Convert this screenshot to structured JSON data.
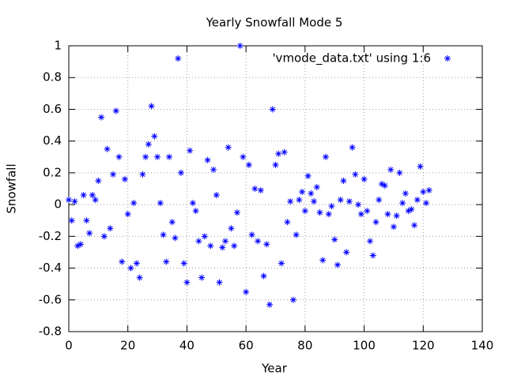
{
  "chart_data": {
    "type": "scatter",
    "title": "Yearly Snowfall Mode 5",
    "xlabel": "Year",
    "ylabel": "Snowfall",
    "legend": "top-right",
    "grid": true,
    "xlim": [
      0,
      140
    ],
    "xticks": [
      0,
      20,
      40,
      60,
      80,
      100,
      120,
      140
    ],
    "ylim": [
      -0.8,
      1
    ],
    "yticks": [
      -0.8,
      -0.6,
      -0.4,
      -0.2,
      0,
      0.2,
      0.4,
      0.6,
      0.8,
      1
    ],
    "series": [
      {
        "name": "'vmode_data.txt' using 1:6",
        "color": "#0000ff",
        "x": [
          0,
          1,
          2,
          3,
          4,
          5,
          6,
          7,
          8,
          9,
          10,
          11,
          12,
          13,
          14,
          15,
          16,
          17,
          18,
          19,
          20,
          21,
          22,
          23,
          24,
          25,
          26,
          27,
          28,
          29,
          30,
          31,
          32,
          33,
          34,
          35,
          36,
          37,
          38,
          39,
          40,
          41,
          42,
          43,
          44,
          45,
          46,
          47,
          48,
          49,
          50,
          51,
          52,
          53,
          54,
          55,
          56,
          57,
          58,
          59,
          60,
          61,
          62,
          63,
          64,
          65,
          66,
          67,
          68,
          69,
          70,
          71,
          72,
          73,
          74,
          75,
          76,
          77,
          78,
          79,
          80,
          81,
          82,
          83,
          84,
          85,
          86,
          87,
          88,
          89,
          90,
          91,
          92,
          93,
          94,
          95,
          96,
          97,
          98,
          99,
          100,
          101,
          102,
          103,
          104,
          105,
          106,
          107,
          108,
          109,
          110,
          111,
          112,
          113,
          114,
          115,
          116,
          117,
          118,
          119,
          120,
          121,
          122
        ],
        "values": [
          0.03,
          -0.1,
          0.02,
          -0.26,
          -0.25,
          0.06,
          -0.1,
          -0.18,
          0.06,
          0.03,
          0.15,
          0.55,
          -0.2,
          0.35,
          -0.15,
          0.19,
          0.59,
          0.3,
          -0.36,
          0.16,
          -0.06,
          -0.4,
          0.01,
          -0.37,
          -0.46,
          0.19,
          0.3,
          0.38,
          0.62,
          0.43,
          0.3,
          0.01,
          -0.19,
          -0.36,
          0.3,
          -0.11,
          -0.21,
          0.92,
          0.2,
          -0.37,
          -0.49,
          0.34,
          0.01,
          -0.04,
          -0.23,
          -0.46,
          -0.2,
          0.28,
          -0.26,
          0.22,
          0.06,
          -0.49,
          -0.27,
          -0.23,
          0.36,
          -0.15,
          -0.26,
          -0.05,
          1.0,
          0.3,
          -0.55,
          0.25,
          -0.19,
          0.1,
          -0.23,
          0.09,
          -0.45,
          -0.25,
          -0.63,
          0.6,
          0.25,
          0.32,
          -0.37,
          0.33,
          -0.11,
          0.02,
          -0.6,
          -0.19,
          0.03,
          0.08,
          -0.04,
          0.18,
          0.07,
          0.02,
          0.11,
          -0.05,
          -0.35,
          0.3,
          -0.06,
          -0.01,
          -0.22,
          -0.38,
          0.03,
          0.15,
          -0.3,
          0.02,
          0.36,
          0.19,
          0.0,
          -0.06,
          0.16,
          -0.04,
          -0.23,
          -0.32,
          -0.11,
          0.03,
          0.13,
          0.12,
          -0.06,
          0.22,
          -0.14,
          -0.07,
          0.2,
          0.01,
          0.07,
          -0.04,
          -0.03,
          -0.13,
          0.03,
          0.24,
          0.08,
          0.01,
          0.09
        ]
      }
    ]
  }
}
